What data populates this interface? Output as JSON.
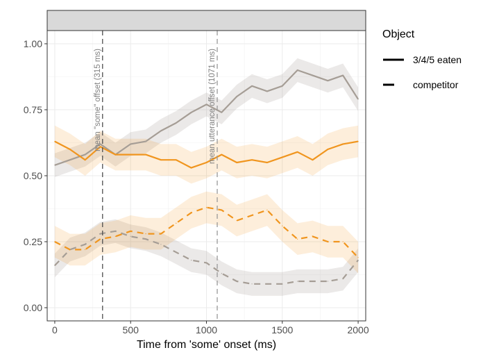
{
  "chart_data": {
    "type": "line",
    "title": "",
    "xlabel": "Time from 'some' onset (ms)",
    "ylabel": "",
    "xlim": [
      -50,
      2050
    ],
    "ylim": [
      -0.05,
      1.05
    ],
    "x_ticks": [
      0,
      500,
      1000,
      1500,
      2000
    ],
    "x_tick_labels": [
      "0",
      "500",
      "1000",
      "1500",
      "2000"
    ],
    "y_ticks": [
      0.0,
      0.25,
      0.5,
      0.75,
      1.0
    ],
    "y_tick_labels": [
      "0.00",
      "0.25",
      "0.50",
      "0.75",
      "1.00"
    ],
    "grid": true,
    "legend": {
      "title": "Object",
      "position": "right",
      "entries": [
        {
          "label": "3/4/5 eaten",
          "linetype": "solid"
        },
        {
          "label": "competitor",
          "linetype": "dashed"
        }
      ]
    },
    "vertical_lines": [
      {
        "x": 315,
        "label": "mean \"some\" offset (315 ms)"
      },
      {
        "x": 1071,
        "label": "mean utterance offset (1071 ms)"
      }
    ],
    "x": [
      0,
      100,
      200,
      300,
      400,
      500,
      600,
      700,
      800,
      900,
      1000,
      1100,
      1200,
      1300,
      1400,
      1500,
      1600,
      1700,
      1800,
      1900,
      2000
    ],
    "series": [
      {
        "name": "3/4/5 eaten",
        "condition": "gray",
        "linetype": "solid",
        "color": "#a59d95",
        "values": [
          0.54,
          0.56,
          0.58,
          0.62,
          0.58,
          0.62,
          0.63,
          0.67,
          0.7,
          0.74,
          0.77,
          0.74,
          0.8,
          0.84,
          0.82,
          0.84,
          0.9,
          0.88,
          0.86,
          0.88,
          0.79
        ],
        "ci": 0.045
      },
      {
        "name": "3/4/5 eaten",
        "condition": "orange",
        "linetype": "solid",
        "color": "#f0951e",
        "values": [
          0.63,
          0.6,
          0.56,
          0.61,
          0.58,
          0.58,
          0.58,
          0.56,
          0.56,
          0.53,
          0.55,
          0.58,
          0.55,
          0.56,
          0.55,
          0.57,
          0.59,
          0.56,
          0.6,
          0.62,
          0.63
        ],
        "ci": 0.06
      },
      {
        "name": "competitor",
        "condition": "gray",
        "linetype": "dashed",
        "color": "#a59d95",
        "values": [
          0.16,
          0.22,
          0.24,
          0.28,
          0.29,
          0.27,
          0.26,
          0.24,
          0.21,
          0.18,
          0.17,
          0.13,
          0.1,
          0.09,
          0.09,
          0.09,
          0.1,
          0.1,
          0.1,
          0.11,
          0.18
        ],
        "ci": 0.045
      },
      {
        "name": "competitor",
        "condition": "orange",
        "linetype": "dashed",
        "color": "#f0951e",
        "values": [
          0.25,
          0.22,
          0.22,
          0.26,
          0.27,
          0.29,
          0.28,
          0.28,
          0.32,
          0.36,
          0.38,
          0.37,
          0.33,
          0.35,
          0.37,
          0.31,
          0.26,
          0.27,
          0.25,
          0.25,
          0.19
        ],
        "ci": 0.06
      }
    ]
  }
}
